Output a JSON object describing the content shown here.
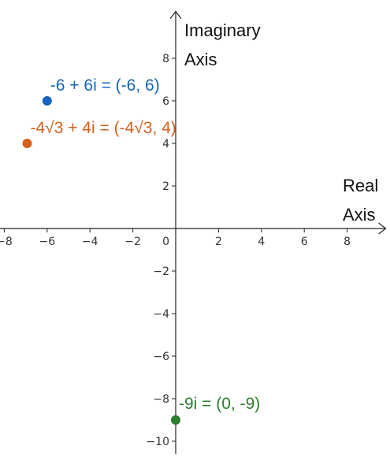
{
  "chart_data": {
    "type": "scatter",
    "title": "",
    "xlabel": [
      "Real",
      "Axis"
    ],
    "ylabel": [
      "Imaginary",
      "Axis"
    ],
    "xlim": [
      -8.2,
      9.8
    ],
    "ylim": [
      -10.6,
      10.2
    ],
    "grid": false,
    "x_ticks": [
      -8,
      -6,
      -4,
      -2,
      2,
      4,
      6,
      8
    ],
    "y_ticks": [
      -10,
      -8,
      -6,
      -4,
      -2,
      2,
      4,
      6,
      8
    ],
    "x_tick_labels": [
      "−8",
      "−6",
      "−4",
      "−2",
      "2",
      "4",
      "6",
      "8"
    ],
    "y_tick_labels": [
      "−10",
      "−8",
      "−6",
      "−4",
      "−2",
      "2",
      "4",
      "6",
      "8"
    ],
    "origin_label": "0",
    "points": [
      {
        "x": -6,
        "y": 6,
        "label": "-6 + 6i = (-6, 6)",
        "color": "#1565c0"
      },
      {
        "x": -6.93,
        "y": 4,
        "label": "-4√3 + 4i = (-4√3, 4)",
        "color": "#d4601c"
      },
      {
        "x": 0,
        "y": -9,
        "label": "-9i = (0, -9)",
        "color": "#2e7d32"
      }
    ]
  }
}
